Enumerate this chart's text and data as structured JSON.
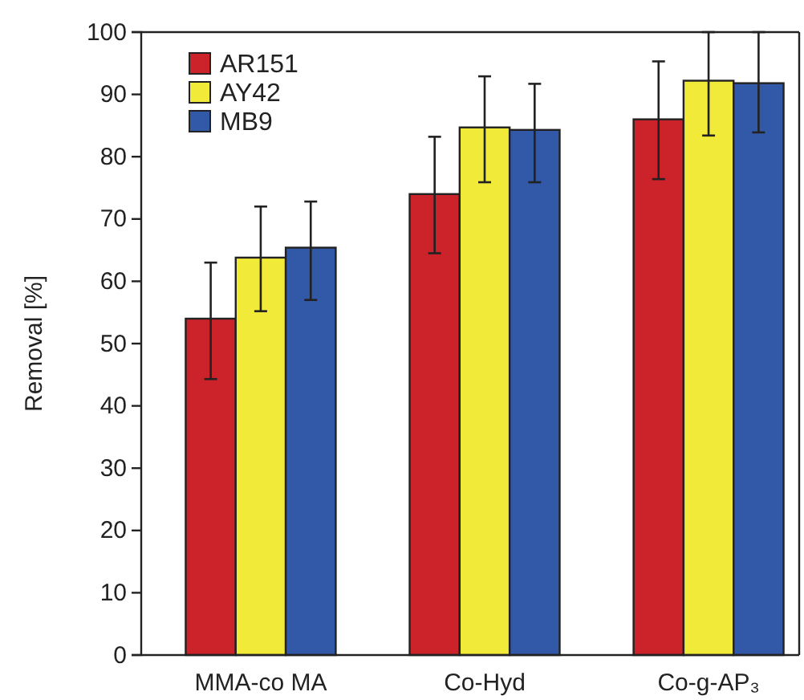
{
  "chart_data": {
    "type": "bar",
    "ylabel": "Removal [%]",
    "categories": [
      "MMA-co MA",
      "Co-Hyd",
      "Co-g-AP₃"
    ],
    "series": [
      {
        "name": "AR151",
        "color": "#cc2229",
        "values": [
          54,
          74,
          86
        ],
        "errors": [
          [
            44.3,
            63
          ],
          [
            64.5,
            83.2
          ],
          [
            76.4,
            95.3
          ]
        ]
      },
      {
        "name": "AY42",
        "color": "#f2ea38",
        "values": [
          63.8,
          84.7,
          92.2
        ],
        "errors": [
          [
            55.2,
            72
          ],
          [
            75.9,
            92.9
          ],
          [
            83.4,
            100
          ]
        ]
      },
      {
        "name": "MB9",
        "color": "#3258a8",
        "values": [
          65.4,
          84.3,
          91.8
        ],
        "errors": [
          [
            57,
            72.8
          ],
          [
            75.9,
            91.7
          ],
          [
            83.9,
            100
          ]
        ]
      }
    ],
    "ylim": [
      0,
      100
    ],
    "yticks": [
      0,
      10,
      20,
      30,
      40,
      50,
      60,
      70,
      80,
      90,
      100
    ],
    "grid": false,
    "legend": "top left"
  }
}
